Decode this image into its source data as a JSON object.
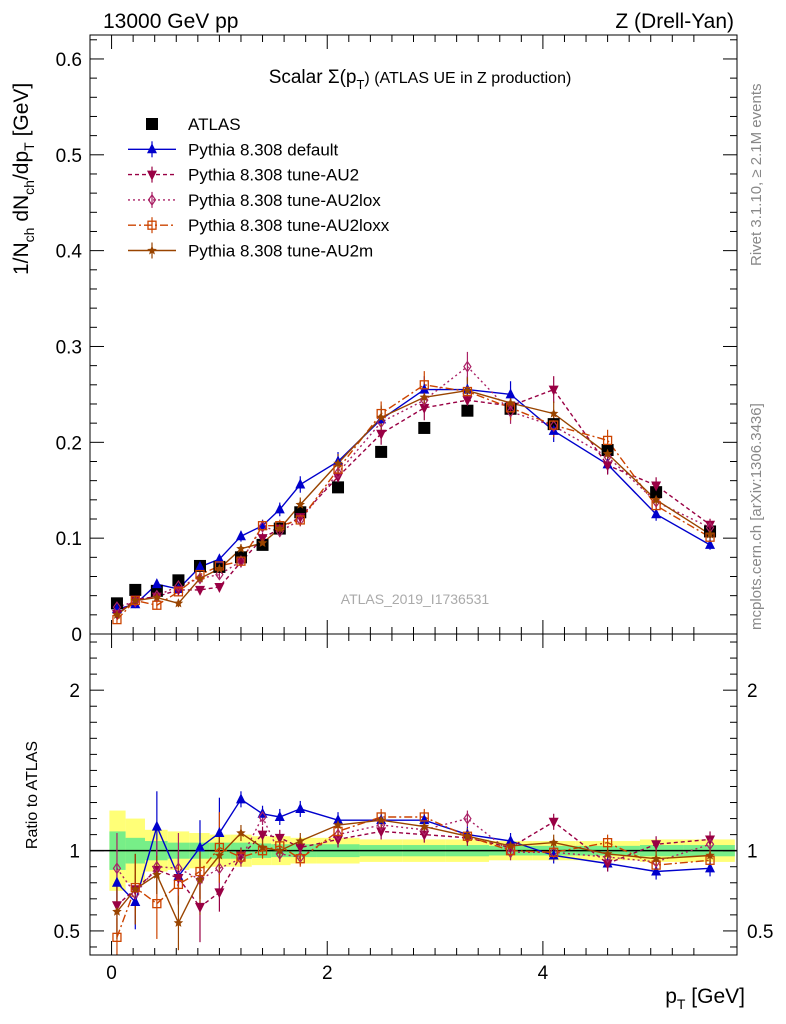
{
  "header": {
    "left": "13000 GeV pp",
    "right": "Z (Drell-Yan)"
  },
  "side": {
    "rivet": "Rivet 3.1.10, ≥ 2.1M events",
    "mcplots": "mcplots.cern.ch [arXiv:1306.3436]"
  },
  "watermark": "ATLAS_2019_I1736531",
  "chart_data": [
    {
      "type": "scatter",
      "title": {
        "prefix": "Scalar Σ(p",
        "sub": "T",
        "suffix": ") (ATLAS UE in Z production)"
      },
      "ylabel": {
        "p1": "1/N",
        "s1": "ch",
        "p2": " dN",
        "s2": "ch",
        "p3": "/dp",
        "s3": "T",
        "p4": " [GeV]"
      },
      "xlim": [
        -0.2,
        5.8
      ],
      "ylim": [
        0,
        0.625
      ],
      "yticks": [
        {
          "v": 0,
          "label": "0"
        },
        {
          "v": 0.1,
          "label": "0.1"
        },
        {
          "v": 0.2,
          "label": "0.2"
        },
        {
          "v": 0.3,
          "label": "0.3"
        },
        {
          "v": 0.4,
          "label": "0.4"
        },
        {
          "v": 0.5,
          "label": "0.5"
        },
        {
          "v": 0.6,
          "label": "0.6"
        }
      ],
      "x": [
        0.05,
        0.22,
        0.42,
        0.62,
        0.82,
        1.0,
        1.2,
        1.4,
        1.56,
        1.75,
        2.1,
        2.5,
        2.9,
        3.3,
        3.7,
        4.1,
        4.6,
        5.05,
        5.55
      ],
      "legend_position": "top-left",
      "series": [
        {
          "name": "ATLAS",
          "color": "#000000",
          "marker": "square-filled",
          "dash": "",
          "values": [
            0.032,
            0.046,
            0.045,
            0.056,
            0.071,
            0.07,
            0.08,
            0.093,
            0.11,
            0.127,
            0.153,
            0.19,
            0.215,
            0.233,
            0.235,
            0.219,
            0.192,
            0.148,
            0.107
          ]
        },
        {
          "name": "Pythia 8.308 default",
          "color": "#0000cc",
          "marker": "triangle-up",
          "dash": "",
          "values": [
            0.026,
            0.031,
            0.052,
            0.047,
            0.07,
            0.078,
            0.102,
            0.113,
            0.13,
            0.156,
            0.18,
            0.224,
            0.255,
            0.255,
            0.25,
            0.212,
            0.177,
            0.125,
            0.093
          ]
        },
        {
          "name": "Pythia 8.308 tune-AU2",
          "color": "#990044",
          "marker": "triangle-down",
          "dash": "4,3",
          "values": [
            0.021,
            0.036,
            0.039,
            0.046,
            0.046,
            0.049,
            0.075,
            0.1,
            0.11,
            0.122,
            0.164,
            0.209,
            0.236,
            0.244,
            0.238,
            0.255,
            0.176,
            0.155,
            0.114
          ]
        },
        {
          "name": "Pythia 8.308 tune-AU2lox",
          "color": "#aa2266",
          "marker": "diamond-open",
          "dash": "2,3",
          "values": [
            0.028,
            0.034,
            0.04,
            0.05,
            0.058,
            0.062,
            0.076,
            0.112,
            0.107,
            0.119,
            0.168,
            0.221,
            0.244,
            0.279,
            0.232,
            0.217,
            0.185,
            0.138,
            0.111
          ]
        },
        {
          "name": "Pythia 8.308 tune-AU2loxx",
          "color": "#cc4400",
          "marker": "square-open",
          "dash": "8,3,2,3",
          "values": [
            0.015,
            0.035,
            0.03,
            0.044,
            0.062,
            0.071,
            0.076,
            0.113,
            0.113,
            0.119,
            0.172,
            0.23,
            0.26,
            0.253,
            0.236,
            0.218,
            0.202,
            0.134,
            0.101
          ]
        },
        {
          "name": "Pythia 8.308 tune-AU2m",
          "color": "#994400",
          "marker": "star",
          "dash": "",
          "values": [
            0.02,
            0.035,
            0.038,
            0.032,
            0.058,
            0.068,
            0.089,
            0.095,
            0.11,
            0.135,
            0.178,
            0.226,
            0.247,
            0.254,
            0.241,
            0.23,
            0.188,
            0.14,
            0.104
          ]
        }
      ]
    },
    {
      "type": "scatter",
      "xlabel": {
        "p1": "p",
        "s1": "T",
        "p2": " [GeV]"
      },
      "ylabel": "Ratio to ATLAS",
      "xlim": [
        -0.2,
        5.8
      ],
      "ylim": [
        0.35,
        2.35
      ],
      "yticks": [
        {
          "v": 0.5,
          "label": "0.5"
        },
        {
          "v": 1,
          "label": "1"
        },
        {
          "v": 2,
          "label": "2"
        }
      ],
      "xticks": [
        {
          "v": 0,
          "label": "0"
        },
        {
          "v": 2,
          "label": "2"
        },
        {
          "v": 4,
          "label": "4"
        }
      ],
      "bands": {
        "outer_color": "#ffff77",
        "inner_color": "#77ee88",
        "edges": [
          -0.02,
          0.13,
          0.31,
          0.52,
          0.72,
          0.91,
          1.1,
          1.3,
          1.48,
          1.66,
          1.9,
          2.3,
          2.7,
          3.1,
          3.5,
          3.9,
          4.3,
          4.9,
          5.3,
          5.78
        ],
        "outer": [
          0.25,
          0.2,
          0.13,
          0.12,
          0.11,
          0.1,
          0.1,
          0.09,
          0.09,
          0.08,
          0.08,
          0.07,
          0.07,
          0.07,
          0.06,
          0.06,
          0.06,
          0.07,
          0.07
        ],
        "inner": [
          0.12,
          0.08,
          0.06,
          0.05,
          0.05,
          0.05,
          0.05,
          0.045,
          0.04,
          0.04,
          0.04,
          0.035,
          0.035,
          0.035,
          0.03,
          0.03,
          0.03,
          0.035,
          0.035
        ]
      },
      "series": [
        {
          "name": "Pythia 8.308 default",
          "values": [
            0.8,
            0.68,
            1.15,
            0.84,
            1.02,
            1.11,
            1.32,
            1.23,
            1.21,
            1.26,
            1.19,
            1.19,
            1.19,
            1.1,
            1.06,
            0.97,
            0.92,
            0.87,
            0.89
          ]
        },
        {
          "name": "Pythia 8.308 tune-AU2",
          "values": [
            0.66,
            0.76,
            0.88,
            0.83,
            0.65,
            0.74,
            0.97,
            1.1,
            1.08,
            1.02,
            1.07,
            1.12,
            1.1,
            1.08,
            1.02,
            1.18,
            0.92,
            1.04,
            1.07
          ]
        },
        {
          "name": "Pythia 8.308 tune-AU2lox",
          "values": [
            0.89,
            0.73,
            0.9,
            0.89,
            0.82,
            0.89,
            0.95,
            1.21,
            0.98,
            0.96,
            1.1,
            1.16,
            1.13,
            1.2,
            0.99,
            0.99,
            0.96,
            0.93,
            1.04
          ]
        },
        {
          "name": "Pythia 8.308 tune-AU2loxx",
          "values": [
            0.46,
            0.77,
            0.67,
            0.79,
            0.87,
            1.02,
            0.96,
            1.0,
            1.03,
            0.95,
            1.12,
            1.21,
            1.21,
            1.09,
            1.0,
            0.99,
            1.05,
            0.91,
            0.94
          ]
        },
        {
          "name": "Pythia 8.308 tune-AU2m",
          "values": [
            0.62,
            0.76,
            0.85,
            0.55,
            0.82,
            0.97,
            1.11,
            1.02,
            1.0,
            1.06,
            1.16,
            1.19,
            1.15,
            1.09,
            1.03,
            1.05,
            0.98,
            0.95,
            0.97
          ]
        }
      ]
    }
  ]
}
